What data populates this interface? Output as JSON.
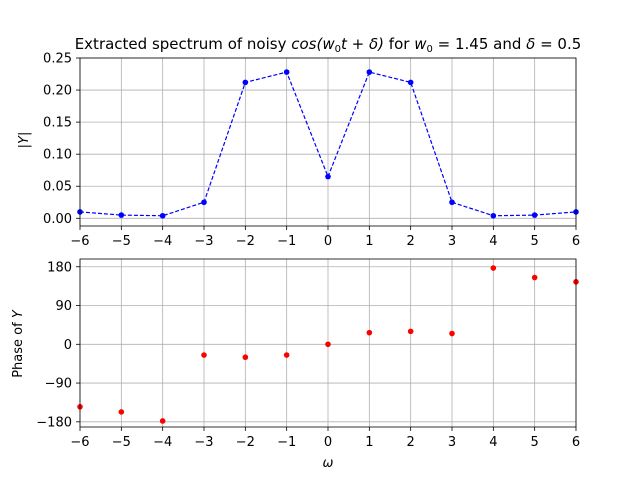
{
  "chart_data": [
    {
      "type": "line",
      "title_parts": [
        "Extracted spectrum of noisy ",
        "cos(",
        "w",
        "0",
        "t + ",
        "δ",
        ")",
        " for ",
        "w",
        "0",
        " = 1.45 and ",
        "δ",
        " = 0.5"
      ],
      "ylabel": "|Y|",
      "xlabel": "",
      "xlim": [
        -6,
        6
      ],
      "ylim": [
        -0.012,
        0.25
      ],
      "xticks": [
        -6,
        -5,
        -4,
        -3,
        -2,
        -1,
        0,
        1,
        2,
        3,
        4,
        5,
        6
      ],
      "xtick_labels": [
        "−6",
        "−5",
        "−4",
        "−3",
        "−2",
        "−1",
        "0",
        "1",
        "2",
        "3",
        "4",
        "5",
        "6"
      ],
      "yticks": [
        0.0,
        0.05,
        0.1,
        0.15,
        0.2,
        0.25
      ],
      "ytick_labels": [
        "0.00",
        "0.05",
        "0.10",
        "0.15",
        "0.20",
        "0.25"
      ],
      "grid": true,
      "line_style": "dashed",
      "marker": "dot",
      "color": "#0000ff",
      "x": [
        -6,
        -5,
        -4,
        -3,
        -2,
        -1,
        0,
        1,
        2,
        3,
        4,
        5,
        6
      ],
      "y": [
        0.01,
        0.005,
        0.004,
        0.025,
        0.212,
        0.228,
        0.065,
        0.228,
        0.212,
        0.025,
        0.004,
        0.005,
        0.01
      ]
    },
    {
      "type": "scatter",
      "ylabel_parts": [
        "Phase of ",
        "Y"
      ],
      "xlabel": "ω",
      "xlim": [
        -6,
        6
      ],
      "ylim": [
        -192,
        198
      ],
      "xticks": [
        -6,
        -5,
        -4,
        -3,
        -2,
        -1,
        0,
        1,
        2,
        3,
        4,
        5,
        6
      ],
      "xtick_labels": [
        "−6",
        "−5",
        "−4",
        "−3",
        "−2",
        "−1",
        "0",
        "1",
        "2",
        "3",
        "4",
        "5",
        "6"
      ],
      "yticks": [
        -180,
        -90,
        0,
        90,
        180
      ],
      "ytick_labels": [
        "−180",
        "−90",
        "0",
        "90",
        "180"
      ],
      "grid": true,
      "marker": "dot",
      "color": "#ff0000",
      "x": [
        -6,
        -5,
        -4,
        -3,
        -2,
        -1,
        0,
        1,
        2,
        3,
        4,
        5,
        6
      ],
      "y": [
        -145,
        -157,
        -178,
        -25,
        -30,
        -25,
        0,
        27,
        30,
        25,
        177,
        155,
        145
      ]
    }
  ]
}
